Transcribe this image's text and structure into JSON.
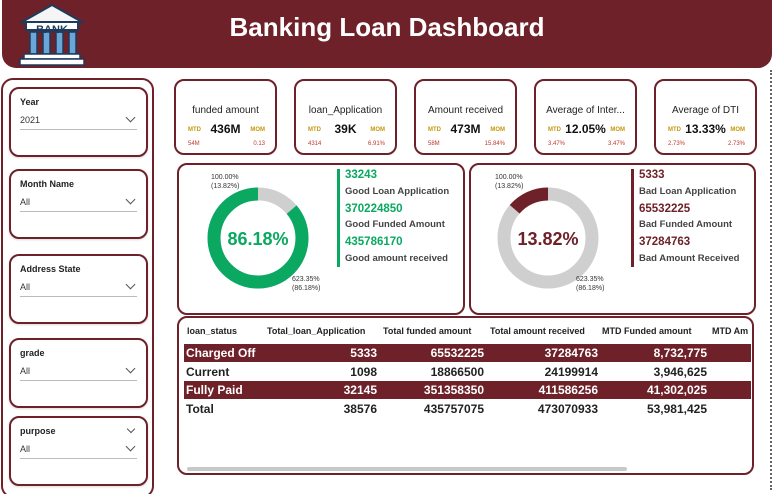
{
  "header": {
    "title": "Banking Loan Dashboard",
    "logo_text": "BANK"
  },
  "filters": [
    {
      "label": "Year",
      "value": "2021"
    },
    {
      "label": "Month Name",
      "value": "All"
    },
    {
      "label": "Address State",
      "value": "All"
    },
    {
      "label": "grade",
      "value": "All"
    },
    {
      "label": "purpose",
      "value": "All"
    }
  ],
  "kpis": [
    {
      "title": "funded amount",
      "mtd_label": "MTD",
      "value": "436M",
      "mom_label": "MOM",
      "mtd_value": "54M",
      "mom_value": "0.13"
    },
    {
      "title": "loan_Application",
      "mtd_label": "MTD",
      "value": "39K",
      "mom_label": "MOM",
      "mtd_value": "4314",
      "mom_value": "6.91%"
    },
    {
      "title": "Amount received",
      "mtd_label": "MTD",
      "value": "473M",
      "mom_label": "MOM",
      "mtd_value": "58M",
      "mom_value": "15.84%"
    },
    {
      "title": "Average of Inter...",
      "mtd_label": "MTD",
      "value": "12.05%",
      "mom_label": "MOM",
      "mtd_value": "3.47%",
      "mom_value": "3.47%"
    },
    {
      "title": "Average of DTI",
      "mtd_label": "MTD",
      "value": "13.33%",
      "mom_label": "MOM",
      "mtd_value": "2.73%",
      "mom_value": "2.73%"
    }
  ],
  "good_loan": {
    "percent": "86.18%",
    "percent_value": 86.18,
    "label_top": "100.00%",
    "label_top2": "(13.82%)",
    "label_bottom": "623.35%",
    "label_bottom2": "(86.18%)",
    "applications": "33243",
    "applications_label": "Good Loan Application",
    "funded": "370224850",
    "funded_label": "Good Funded Amount",
    "received": "435786170",
    "received_label": "Good amount received",
    "color": "#0aa860"
  },
  "bad_loan": {
    "percent": "13.82%",
    "percent_value": 13.82,
    "label_top": "100.00%",
    "label_top2": "(13.82%)",
    "label_bottom": "623.35%",
    "label_bottom2": "(86.18%)",
    "applications": "5333",
    "applications_label": "Bad Loan Application",
    "funded": "65532225",
    "funded_label": "Bad Funded Amount",
    "received": "37284763",
    "received_label": "Bad Amount Received",
    "color": "#6e2129"
  },
  "table": {
    "columns": [
      "loan_status",
      "Total_loan_Application",
      "Total funded amount",
      "Total amount received",
      "MTD Funded amount",
      "MTD Am"
    ],
    "rows": [
      {
        "status": "Charged Off",
        "apps": "5333",
        "funded": "65532225",
        "received": "37284763",
        "mtd": "8,732,775"
      },
      {
        "status": "Current",
        "apps": "1098",
        "funded": "18866500",
        "received": "24199914",
        "mtd": "3,946,625"
      },
      {
        "status": "Fully Paid",
        "apps": "32145",
        "funded": "351358350",
        "received": "411586256",
        "mtd": "41,302,025"
      }
    ],
    "total": {
      "status": "Total",
      "apps": "38576",
      "funded": "435757075",
      "received": "473070933",
      "mtd": "53,981,425"
    }
  },
  "colors": {
    "brand": "#6e2129",
    "good": "#0aa860",
    "ring_bg": "#cfcfcf",
    "accent_label": "#c49a0b",
    "negative": "#c0392b"
  }
}
